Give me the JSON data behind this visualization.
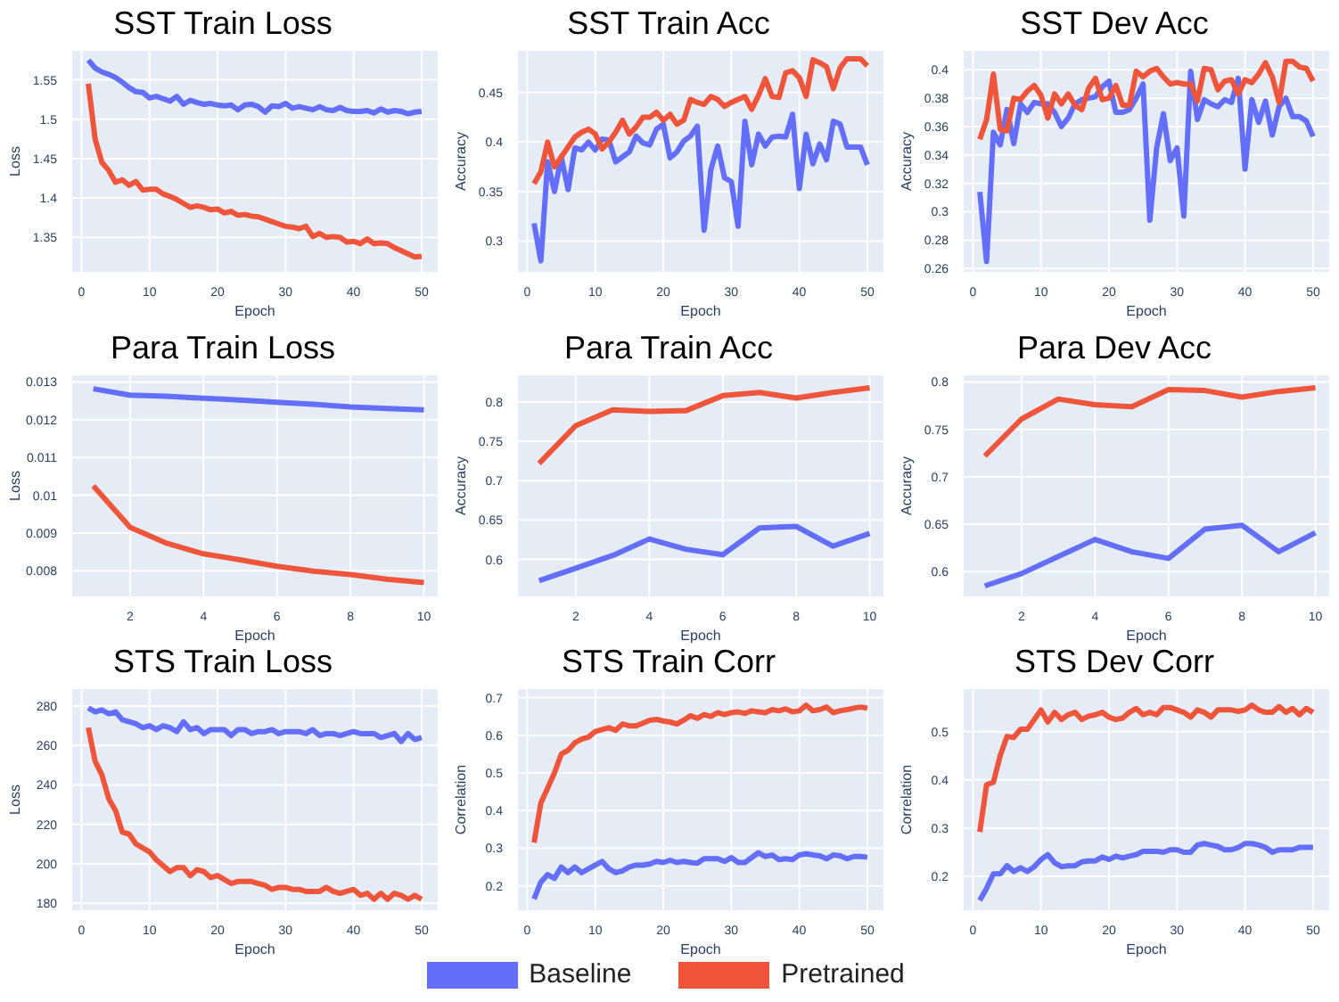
{
  "chart_data": [
    {
      "type": "line",
      "title": "SST Train Loss",
      "xlabel": "Epoch",
      "ylabel": "Loss",
      "grid": true,
      "xlim": [
        -1.5,
        52.5
      ],
      "xticks": [
        0,
        10,
        20,
        30,
        40,
        50
      ],
      "ylim": [
        1.305,
        1.588
      ],
      "yticks": [
        1.35,
        1.4,
        1.45,
        1.5,
        1.55
      ],
      "x": [
        1,
        2,
        3,
        4,
        5,
        6,
        7,
        8,
        9,
        10,
        11,
        12,
        13,
        14,
        15,
        16,
        17,
        18,
        19,
        20,
        21,
        22,
        23,
        24,
        25,
        26,
        27,
        28,
        29,
        30,
        31,
        32,
        33,
        34,
        35,
        36,
        37,
        38,
        39,
        40,
        41,
        42,
        43,
        44,
        45,
        46,
        47,
        48,
        49,
        50
      ],
      "series": [
        {
          "color": "#636efa",
          "values": [
            1.575,
            1.565,
            1.56,
            1.557,
            1.553,
            1.547,
            1.54,
            1.535,
            1.534,
            1.527,
            1.529,
            1.526,
            1.523,
            1.529,
            1.519,
            1.524,
            1.521,
            1.519,
            1.52,
            1.518,
            1.517,
            1.518,
            1.512,
            1.518,
            1.519,
            1.516,
            1.509,
            1.517,
            1.516,
            1.52,
            1.514,
            1.516,
            1.514,
            1.512,
            1.516,
            1.512,
            1.511,
            1.515,
            1.511,
            1.51,
            1.51,
            1.511,
            1.508,
            1.513,
            1.509,
            1.511,
            1.51,
            1.507,
            1.509,
            1.51
          ]
        },
        {
          "color": "#ef553b",
          "values": [
            1.545,
            1.475,
            1.445,
            1.435,
            1.42,
            1.423,
            1.416,
            1.421,
            1.41,
            1.411,
            1.411,
            1.405,
            1.402,
            1.398,
            1.393,
            1.388,
            1.39,
            1.388,
            1.385,
            1.386,
            1.381,
            1.383,
            1.378,
            1.379,
            1.377,
            1.376,
            1.373,
            1.37,
            1.367,
            1.364,
            1.363,
            1.361,
            1.364,
            1.351,
            1.355,
            1.35,
            1.351,
            1.35,
            1.344,
            1.345,
            1.342,
            1.348,
            1.342,
            1.343,
            1.342,
            1.337,
            1.333,
            1.329,
            1.325,
            1.326
          ]
        }
      ]
    },
    {
      "type": "line",
      "title": "SST Train Acc",
      "xlabel": "Epoch",
      "ylabel": "Accuracy",
      "grid": true,
      "xlim": [
        -1.5,
        52.5
      ],
      "xticks": [
        0,
        10,
        20,
        30,
        40,
        50
      ],
      "ylim": [
        0.268,
        0.493
      ],
      "yticks": [
        0.3,
        0.35,
        0.4,
        0.45
      ],
      "x": [
        1,
        2,
        3,
        4,
        5,
        6,
        7,
        8,
        9,
        10,
        11,
        12,
        13,
        14,
        15,
        16,
        17,
        18,
        19,
        20,
        21,
        22,
        23,
        24,
        25,
        26,
        27,
        28,
        29,
        30,
        31,
        32,
        33,
        34,
        35,
        36,
        37,
        38,
        39,
        40,
        41,
        42,
        43,
        44,
        45,
        46,
        47,
        48,
        49,
        50
      ],
      "series": [
        {
          "color": "#636efa",
          "values": [
            0.318,
            0.28,
            0.38,
            0.35,
            0.385,
            0.352,
            0.394,
            0.392,
            0.4,
            0.392,
            0.403,
            0.402,
            0.38,
            0.385,
            0.39,
            0.406,
            0.399,
            0.397,
            0.413,
            0.418,
            0.384,
            0.39,
            0.401,
            0.406,
            0.416,
            0.311,
            0.372,
            0.396,
            0.364,
            0.36,
            0.315,
            0.421,
            0.377,
            0.408,
            0.396,
            0.405,
            0.406,
            0.405,
            0.428,
            0.353,
            0.408,
            0.378,
            0.398,
            0.382,
            0.421,
            0.418,
            0.395,
            0.395,
            0.395,
            0.377
          ]
        },
        {
          "color": "#ef553b",
          "values": [
            0.358,
            0.37,
            0.4,
            0.375,
            0.385,
            0.395,
            0.405,
            0.41,
            0.413,
            0.408,
            0.393,
            0.4,
            0.41,
            0.422,
            0.408,
            0.415,
            0.425,
            0.425,
            0.43,
            0.422,
            0.428,
            0.418,
            0.422,
            0.443,
            0.44,
            0.438,
            0.446,
            0.443,
            0.436,
            0.44,
            0.443,
            0.446,
            0.433,
            0.447,
            0.464,
            0.446,
            0.445,
            0.47,
            0.472,
            0.465,
            0.446,
            0.483,
            0.48,
            0.476,
            0.454,
            0.475,
            0.484,
            0.484,
            0.484,
            0.477
          ]
        }
      ]
    },
    {
      "type": "line",
      "title": "SST Dev Acc",
      "xlabel": "Epoch",
      "ylabel": "Accuracy",
      "grid": true,
      "xlim": [
        -1.5,
        52.5
      ],
      "xticks": [
        0,
        10,
        20,
        30,
        40,
        50
      ],
      "ylim": [
        0.257,
        0.414
      ],
      "yticks": [
        0.26,
        0.28,
        0.3,
        0.32,
        0.34,
        0.36,
        0.38,
        0.4
      ],
      "x": [
        1,
        2,
        3,
        4,
        5,
        6,
        7,
        8,
        9,
        10,
        11,
        12,
        13,
        14,
        15,
        16,
        17,
        18,
        19,
        20,
        21,
        22,
        23,
        24,
        25,
        26,
        27,
        28,
        29,
        30,
        31,
        32,
        33,
        34,
        35,
        36,
        37,
        38,
        39,
        40,
        41,
        42,
        43,
        44,
        45,
        46,
        47,
        48,
        49,
        50
      ],
      "series": [
        {
          "color": "#636efa",
          "values": [
            0.314,
            0.265,
            0.356,
            0.347,
            0.372,
            0.348,
            0.376,
            0.37,
            0.377,
            0.376,
            0.376,
            0.37,
            0.36,
            0.366,
            0.376,
            0.379,
            0.38,
            0.381,
            0.388,
            0.392,
            0.37,
            0.37,
            0.372,
            0.38,
            0.39,
            0.294,
            0.345,
            0.369,
            0.336,
            0.345,
            0.297,
            0.399,
            0.365,
            0.379,
            0.376,
            0.374,
            0.379,
            0.377,
            0.394,
            0.33,
            0.379,
            0.363,
            0.378,
            0.354,
            0.374,
            0.38,
            0.367,
            0.367,
            0.364,
            0.353
          ]
        },
        {
          "color": "#ef553b",
          "values": [
            0.351,
            0.365,
            0.397,
            0.358,
            0.357,
            0.38,
            0.379,
            0.385,
            0.389,
            0.382,
            0.366,
            0.383,
            0.376,
            0.383,
            0.375,
            0.372,
            0.387,
            0.394,
            0.379,
            0.38,
            0.389,
            0.375,
            0.375,
            0.399,
            0.395,
            0.399,
            0.401,
            0.395,
            0.39,
            0.391,
            0.39,
            0.39,
            0.378,
            0.401,
            0.4,
            0.386,
            0.392,
            0.393,
            0.383,
            0.393,
            0.391,
            0.397,
            0.405,
            0.395,
            0.377,
            0.406,
            0.406,
            0.402,
            0.401,
            0.392
          ]
        }
      ]
    },
    {
      "type": "line",
      "title": "Para Train Loss",
      "xlabel": "Epoch",
      "ylabel": "Loss",
      "grid": true,
      "xlim": [
        0.4,
        10.4
      ],
      "xticks": [
        2,
        4,
        6,
        8,
        10
      ],
      "ylim": [
        0.0073,
        0.0132
      ],
      "yticks": [
        0.008,
        0.009,
        0.01,
        0.011,
        0.012,
        0.013
      ],
      "x": [
        1,
        2,
        3,
        4,
        5,
        6,
        7,
        8,
        9,
        10
      ],
      "series": [
        {
          "color": "#636efa",
          "values": [
            0.01282,
            0.01265,
            0.01262,
            0.01257,
            0.01252,
            0.01246,
            0.01241,
            0.01234,
            0.0123,
            0.01226
          ]
        },
        {
          "color": "#ef553b",
          "values": [
            0.01025,
            0.00915,
            0.00873,
            0.00845,
            0.00829,
            0.00812,
            0.00799,
            0.0079,
            0.00778,
            0.00769
          ]
        }
      ]
    },
    {
      "type": "line",
      "title": "Para Train Acc",
      "xlabel": "Epoch",
      "ylabel": "Accuracy",
      "grid": true,
      "xlim": [
        0.4,
        10.4
      ],
      "xticks": [
        2,
        4,
        6,
        8,
        10
      ],
      "ylim": [
        0.552,
        0.835
      ],
      "yticks": [
        0.6,
        0.65,
        0.7,
        0.75,
        0.8
      ],
      "x": [
        1,
        2,
        3,
        4,
        5,
        6,
        7,
        8,
        9,
        10
      ],
      "series": [
        {
          "color": "#636efa",
          "values": [
            0.573,
            0.589,
            0.605,
            0.626,
            0.613,
            0.606,
            0.64,
            0.642,
            0.617,
            0.633
          ]
        },
        {
          "color": "#ef553b",
          "values": [
            0.722,
            0.77,
            0.79,
            0.788,
            0.789,
            0.808,
            0.812,
            0.805,
            0.812,
            0.818
          ]
        }
      ]
    },
    {
      "type": "line",
      "title": "Para Dev Acc",
      "xlabel": "Epoch",
      "ylabel": "Accuracy",
      "grid": true,
      "xlim": [
        0.4,
        10.4
      ],
      "xticks": [
        2,
        4,
        6,
        8,
        10
      ],
      "ylim": [
        0.573,
        0.808
      ],
      "yticks": [
        0.6,
        0.65,
        0.7,
        0.75,
        0.8
      ],
      "x": [
        1,
        2,
        3,
        4,
        5,
        6,
        7,
        8,
        9,
        10
      ],
      "series": [
        {
          "color": "#636efa",
          "values": [
            0.585,
            0.598,
            0.616,
            0.634,
            0.621,
            0.614,
            0.645,
            0.649,
            0.621,
            0.641
          ]
        },
        {
          "color": "#ef553b",
          "values": [
            0.722,
            0.761,
            0.782,
            0.776,
            0.774,
            0.792,
            0.791,
            0.784,
            0.79,
            0.794
          ]
        }
      ]
    },
    {
      "type": "line",
      "title": "STS Train Loss",
      "xlabel": "Epoch",
      "ylabel": "Loss",
      "grid": true,
      "xlim": [
        -1.5,
        52.5
      ],
      "xticks": [
        0,
        10,
        20,
        30,
        40,
        50
      ],
      "ylim": [
        176,
        289
      ],
      "yticks": [
        180,
        200,
        220,
        240,
        260,
        280
      ],
      "x": [
        1,
        2,
        3,
        4,
        5,
        6,
        7,
        8,
        9,
        10,
        11,
        12,
        13,
        14,
        15,
        16,
        17,
        18,
        19,
        20,
        21,
        22,
        23,
        24,
        25,
        26,
        27,
        28,
        29,
        30,
        31,
        32,
        33,
        34,
        35,
        36,
        37,
        38,
        39,
        40,
        41,
        42,
        43,
        44,
        45,
        46,
        47,
        48,
        49,
        50
      ],
      "series": [
        {
          "color": "#636efa",
          "values": [
            279,
            277,
            278,
            276,
            277,
            273,
            272,
            271,
            269,
            270,
            268,
            270,
            269,
            267,
            272,
            268,
            269,
            266,
            268,
            268,
            268,
            265,
            268,
            268,
            266,
            267,
            267,
            268,
            266,
            267,
            267,
            267,
            266,
            268,
            265,
            266,
            266,
            265,
            266,
            267,
            266,
            266,
            266,
            264,
            265,
            266,
            262,
            266,
            263,
            264
          ]
        },
        {
          "color": "#ef553b",
          "values": [
            269,
            252,
            245,
            233,
            227,
            216,
            215,
            210,
            208,
            206,
            202,
            199,
            196,
            198,
            198,
            194,
            197,
            196,
            193,
            194,
            192,
            190,
            191,
            191,
            191,
            190,
            189,
            187,
            188,
            188,
            187,
            187,
            186,
            186,
            186,
            188,
            186,
            185,
            186,
            187,
            184,
            185,
            182,
            185,
            182,
            185,
            184,
            182,
            184,
            182
          ]
        }
      ]
    },
    {
      "type": "line",
      "title": "STS Train Corr",
      "xlabel": "Epoch",
      "ylabel": "Correlation",
      "grid": true,
      "legend": "bottom",
      "xlim": [
        -1.5,
        52.5
      ],
      "xticks": [
        0,
        10,
        20,
        30,
        40,
        50
      ],
      "ylim": [
        0.133,
        0.725
      ],
      "yticks": [
        0.2,
        0.3,
        0.4,
        0.5,
        0.6,
        0.7
      ],
      "x": [
        1,
        2,
        3,
        4,
        5,
        6,
        7,
        8,
        9,
        10,
        11,
        12,
        13,
        14,
        15,
        16,
        17,
        18,
        19,
        20,
        21,
        22,
        23,
        24,
        25,
        26,
        27,
        28,
        29,
        30,
        31,
        32,
        33,
        34,
        35,
        36,
        37,
        38,
        39,
        40,
        41,
        42,
        43,
        44,
        45,
        46,
        47,
        48,
        49,
        50
      ],
      "series": [
        {
          "name": "Baseline",
          "color": "#636efa",
          "values": [
            0.165,
            0.21,
            0.23,
            0.22,
            0.25,
            0.235,
            0.25,
            0.235,
            0.245,
            0.255,
            0.265,
            0.245,
            0.235,
            0.24,
            0.25,
            0.255,
            0.255,
            0.258,
            0.265,
            0.262,
            0.268,
            0.262,
            0.265,
            0.262,
            0.26,
            0.272,
            0.272,
            0.272,
            0.265,
            0.275,
            0.262,
            0.262,
            0.275,
            0.288,
            0.278,
            0.282,
            0.27,
            0.272,
            0.27,
            0.282,
            0.285,
            0.282,
            0.28,
            0.272,
            0.282,
            0.28,
            0.272,
            0.278,
            0.278,
            0.276
          ]
        },
        {
          "name": "Pretrained",
          "color": "#ef553b",
          "values": [
            0.315,
            0.42,
            0.46,
            0.5,
            0.55,
            0.56,
            0.58,
            0.59,
            0.595,
            0.61,
            0.615,
            0.62,
            0.613,
            0.63,
            0.625,
            0.625,
            0.632,
            0.64,
            0.642,
            0.638,
            0.635,
            0.63,
            0.64,
            0.652,
            0.645,
            0.655,
            0.65,
            0.66,
            0.655,
            0.66,
            0.662,
            0.658,
            0.665,
            0.662,
            0.66,
            0.668,
            0.665,
            0.67,
            0.662,
            0.665,
            0.68,
            0.665,
            0.668,
            0.675,
            0.66,
            0.665,
            0.668,
            0.672,
            0.675,
            0.672
          ]
        }
      ]
    },
    {
      "type": "line",
      "title": "STS Dev Corr",
      "xlabel": "Epoch",
      "ylabel": "Correlation",
      "grid": true,
      "xlim": [
        -1.5,
        52.5
      ],
      "xticks": [
        0,
        10,
        20,
        30,
        40,
        50
      ],
      "ylim": [
        0.128,
        0.59
      ],
      "yticks": [
        0.2,
        0.3,
        0.4,
        0.5
      ],
      "x": [
        1,
        2,
        3,
        4,
        5,
        6,
        7,
        8,
        9,
        10,
        11,
        12,
        13,
        14,
        15,
        16,
        17,
        18,
        19,
        20,
        21,
        22,
        23,
        24,
        25,
        26,
        27,
        28,
        29,
        30,
        31,
        32,
        33,
        34,
        35,
        36,
        37,
        38,
        39,
        40,
        41,
        42,
        43,
        44,
        45,
        46,
        47,
        48,
        49,
        50
      ],
      "series": [
        {
          "color": "#636efa",
          "values": [
            0.15,
            0.175,
            0.205,
            0.205,
            0.222,
            0.21,
            0.218,
            0.21,
            0.22,
            0.235,
            0.245,
            0.228,
            0.22,
            0.222,
            0.222,
            0.23,
            0.232,
            0.232,
            0.24,
            0.235,
            0.242,
            0.238,
            0.242,
            0.245,
            0.252,
            0.252,
            0.252,
            0.25,
            0.255,
            0.255,
            0.25,
            0.25,
            0.265,
            0.268,
            0.265,
            0.262,
            0.255,
            0.255,
            0.26,
            0.268,
            0.268,
            0.265,
            0.26,
            0.25,
            0.255,
            0.255,
            0.255,
            0.26,
            0.26,
            0.26
          ]
        },
        {
          "color": "#ef553b",
          "values": [
            0.292,
            0.39,
            0.395,
            0.45,
            0.49,
            0.488,
            0.505,
            0.505,
            0.525,
            0.545,
            0.52,
            0.54,
            0.525,
            0.535,
            0.54,
            0.525,
            0.532,
            0.535,
            0.54,
            0.53,
            0.525,
            0.528,
            0.54,
            0.548,
            0.535,
            0.54,
            0.535,
            0.55,
            0.55,
            0.545,
            0.54,
            0.53,
            0.545,
            0.54,
            0.53,
            0.545,
            0.545,
            0.545,
            0.542,
            0.545,
            0.555,
            0.545,
            0.54,
            0.54,
            0.552,
            0.54,
            0.548,
            0.535,
            0.548,
            0.54
          ]
        }
      ]
    }
  ]
}
